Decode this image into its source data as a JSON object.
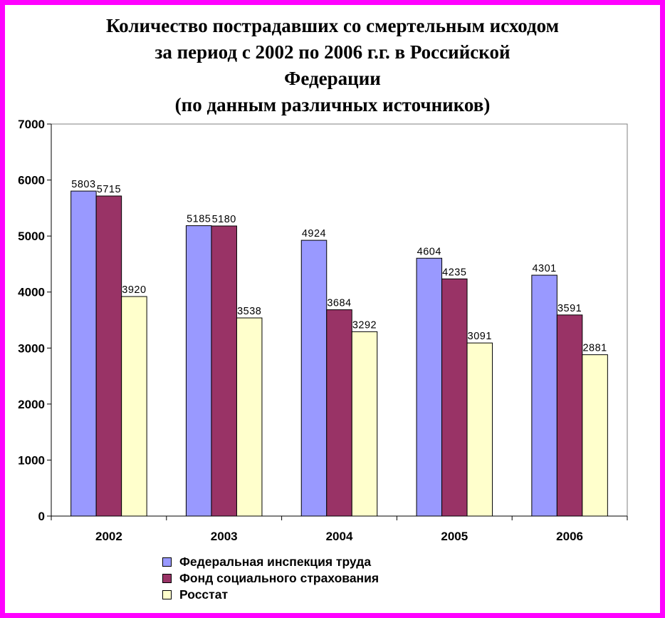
{
  "chart_data": {
    "type": "bar",
    "title": "Количество пострадавших со смертельным исходом за период с 2002 по 2006 г.г. в Российской Федерации (по данным различных источников)",
    "title_lines": [
      "Количество пострадавших со смертельным исходом",
      "за период с 2002 по 2006 г.г. в Российской",
      "Федерации",
      "(по данным различных источников)"
    ],
    "categories": [
      "2002",
      "2003",
      "2004",
      "2005",
      "2006"
    ],
    "series": [
      {
        "name": "Федеральная инспекция труда",
        "color": "#9999ff",
        "values": [
          5803,
          5185,
          4924,
          4604,
          4301
        ]
      },
      {
        "name": "Фонд социального страхования",
        "color": "#993366",
        "values": [
          5715,
          5180,
          3684,
          4235,
          3591
        ]
      },
      {
        "name": "Росстат",
        "color": "#ffffcc",
        "values": [
          3920,
          3538,
          3292,
          3091,
          2881
        ]
      }
    ],
    "ylim": [
      0,
      7000
    ],
    "yticks": [
      "0",
      "1000",
      "2000",
      "3000",
      "4000",
      "5000",
      "6000",
      "7000"
    ],
    "xlabel": "",
    "ylabel": "",
    "grid": false,
    "legend": "bottom",
    "data_labels": true
  }
}
